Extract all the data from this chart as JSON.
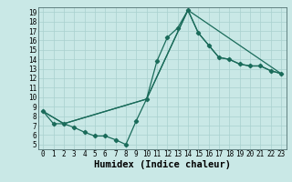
{
  "xlabel": "Humidex (Indice chaleur)",
  "xlim": [
    -0.5,
    23.5
  ],
  "ylim": [
    4.5,
    19.5
  ],
  "xticks": [
    0,
    1,
    2,
    3,
    4,
    5,
    6,
    7,
    8,
    9,
    10,
    11,
    12,
    13,
    14,
    15,
    16,
    17,
    18,
    19,
    20,
    21,
    22,
    23
  ],
  "yticks": [
    5,
    6,
    7,
    8,
    9,
    10,
    11,
    12,
    13,
    14,
    15,
    16,
    17,
    18,
    19
  ],
  "background_color": "#c9e8e6",
  "grid_color": "#a8d0ce",
  "line_color": "#1a6b5a",
  "series1_x": [
    0,
    1,
    2,
    3,
    4,
    5,
    6,
    7,
    8,
    9,
    10,
    11,
    12,
    13,
    14,
    15,
    16,
    17,
    18,
    19,
    20,
    21,
    22,
    23
  ],
  "series1_y": [
    8.5,
    7.2,
    7.2,
    6.8,
    6.3,
    5.9,
    5.9,
    5.5,
    5.0,
    7.5,
    9.8,
    13.8,
    16.3,
    17.3,
    19.2,
    16.8,
    15.5,
    14.2,
    14.0,
    13.5,
    13.3,
    13.3,
    12.8,
    12.5
  ],
  "series2_x": [
    0,
    2,
    10,
    14,
    15,
    16,
    17,
    18,
    19,
    20,
    21,
    22,
    23
  ],
  "series2_y": [
    8.5,
    7.2,
    9.8,
    19.2,
    16.8,
    15.5,
    14.2,
    14.0,
    13.5,
    13.3,
    13.3,
    12.8,
    12.5
  ],
  "series3_x": [
    0,
    2,
    10,
    14,
    23
  ],
  "series3_y": [
    8.5,
    7.2,
    9.8,
    19.2,
    12.5
  ],
  "font_family": "monospace",
  "tick_fontsize": 5.5,
  "label_fontsize": 7.5
}
